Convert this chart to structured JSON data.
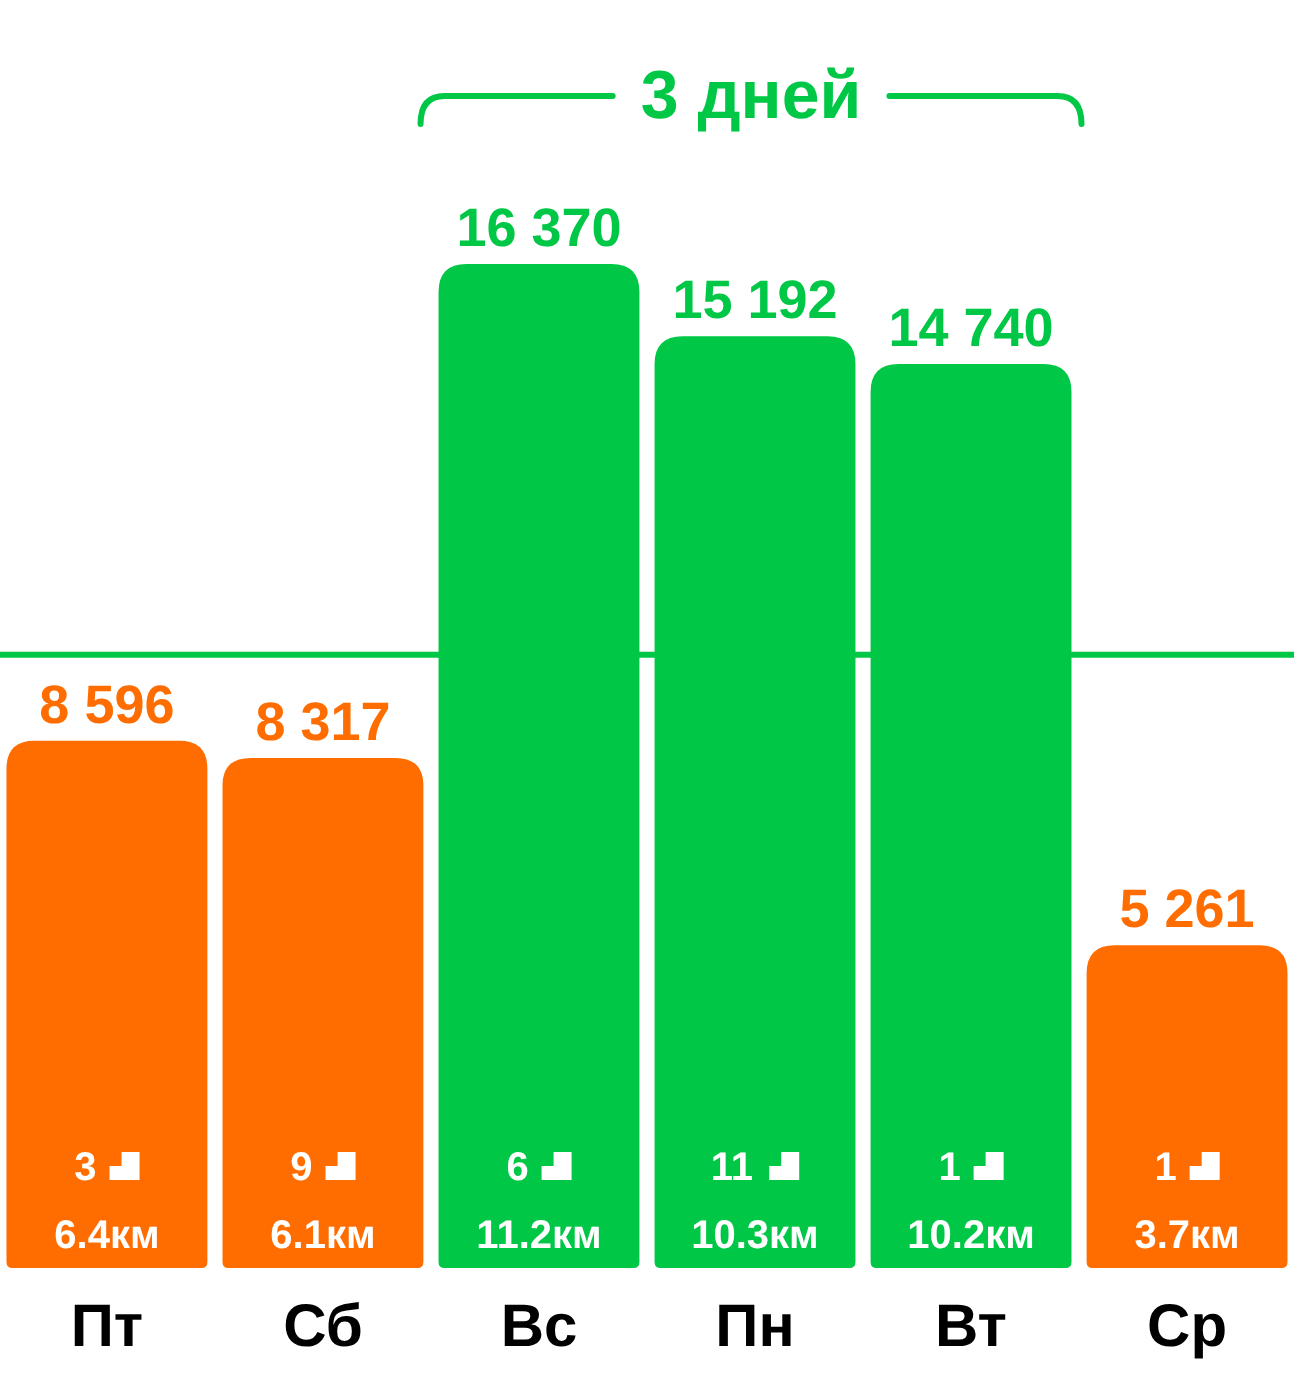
{
  "chart_data": {
    "type": "bar",
    "categories": [
      "Пт",
      "Сб",
      "Вс",
      "Пн",
      "Вт",
      "Ср"
    ],
    "values": [
      8596,
      8317,
      16370,
      15192,
      14740,
      5261
    ],
    "colors": [
      "#ff6d00",
      "#ff6d00",
      "#00c846",
      "#00c846",
      "#00c846",
      "#ff6d00"
    ],
    "value_labels": [
      "8 596",
      "8 317",
      "16 370",
      "15 192",
      "14 740",
      "5 261"
    ],
    "tick_labels": "x",
    "ref_lines": [
      {
        "axis": "y",
        "value": 10000,
        "color": "#00c846"
      }
    ],
    "annotations": [
      "3 дней",
      "3",
      "6.4км",
      "9",
      "6.1км",
      "6",
      "11.2км",
      "11",
      "10.3км",
      "1",
      "10.2км",
      "1",
      "3.7км"
    ]
  }
}
